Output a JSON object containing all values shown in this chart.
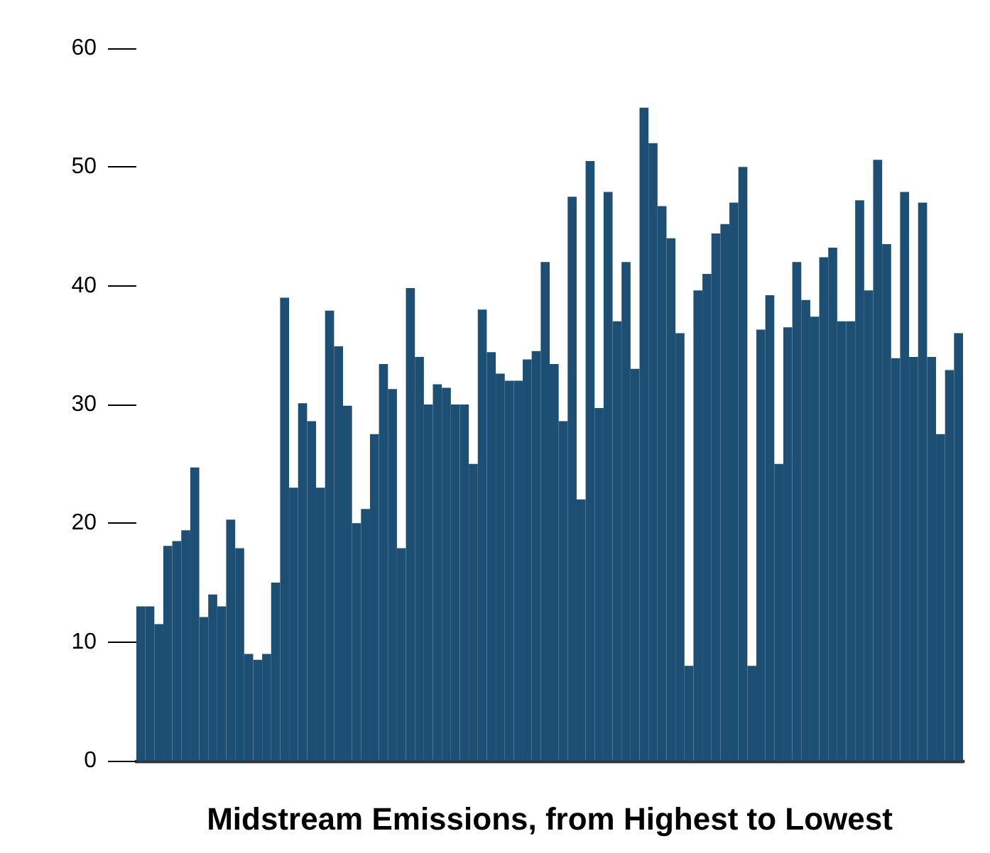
{
  "chart_data": {
    "type": "bar",
    "xlabel": "Midstream Emissions, from Highest to Lowest",
    "categories": [
      null,
      null,
      null,
      null,
      null,
      null,
      null,
      null,
      null,
      null,
      null,
      null,
      null,
      null,
      null,
      null,
      null,
      null,
      null,
      null,
      null,
      null,
      null,
      null,
      null,
      null,
      null,
      null,
      null,
      null,
      null,
      null,
      null,
      null,
      null,
      null,
      null,
      null,
      null,
      null,
      null,
      null,
      null,
      null,
      null,
      null,
      null,
      null,
      null,
      null,
      null,
      null,
      null,
      null,
      null,
      null,
      null,
      null,
      null,
      null,
      null,
      null,
      null,
      null,
      null,
      null,
      null,
      null,
      null,
      null,
      null,
      null,
      null,
      null,
      null,
      null,
      null,
      null,
      null,
      null,
      null,
      null,
      null,
      null,
      null,
      null,
      null,
      null,
      null,
      null,
      null,
      null
    ],
    "values": [
      13,
      13,
      11.5,
      18.1,
      18.5,
      19.4,
      24.7,
      12.1,
      14,
      13,
      20.3,
      17.9,
      9,
      8.5,
      9,
      15,
      39,
      23,
      30.1,
      28.6,
      23,
      37.9,
      34.9,
      29.9,
      20,
      21.2,
      27.5,
      33.4,
      31.3,
      17.9,
      39.8,
      34,
      30,
      31.7,
      31.4,
      30,
      30,
      25,
      38,
      34.4,
      32.6,
      32,
      32,
      33.8,
      34.5,
      42,
      33.4,
      28.6,
      47.5,
      22,
      50.5,
      29.7,
      47.9,
      37,
      42,
      33,
      55,
      52,
      46.7,
      44,
      36,
      8,
      39.6,
      41,
      44.4,
      45.2,
      47,
      50,
      8,
      36.3,
      39.2,
      25,
      36.5,
      42,
      38.8,
      37.4,
      42.4,
      43.2,
      37,
      37,
      47.2,
      39.6,
      50.6,
      43.5,
      33.9,
      47.9,
      34,
      47,
      34,
      27.5,
      32.9,
      36
    ],
    "color": "#1d4e73",
    "ylim": [
      0,
      60
    ],
    "yticks": [
      0,
      10,
      20,
      30,
      40,
      50,
      60
    ],
    "grid": false
  }
}
